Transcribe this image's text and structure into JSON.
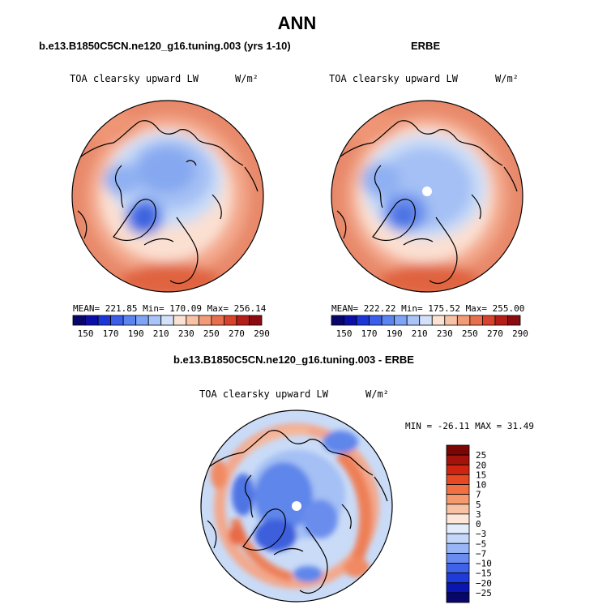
{
  "page": {
    "title": "ANN",
    "colors": {
      "land_outline": "#000000",
      "abs_scale": [
        "#08066b",
        "#0b0fa8",
        "#1c35d6",
        "#3c5ee8",
        "#5b84f0",
        "#7fa4f5",
        "#a9c4f8",
        "#d3e1fa",
        "#fbe3d3",
        "#f8c2a6",
        "#f39b78",
        "#e86f4d",
        "#d7432c",
        "#b51d19",
        "#8a0c10"
      ],
      "diff_scale": [
        "#08066b",
        "#0b15b0",
        "#1f3bd9",
        "#3e62e8",
        "#6a8cf0",
        "#9ab5f5",
        "#c4d6f9",
        "#e3ecfb",
        "#fde7d9",
        "#f8c3a4",
        "#f59a6e",
        "#f07043",
        "#e74a22",
        "#cf2510",
        "#a3120b",
        "#7a0606"
      ]
    }
  },
  "chart_data": [
    {
      "type": "heatmap",
      "projection": "polar-stereographic-north",
      "title": "b.e13.B1850C5CN.ne120_g16.tuning.003 (yrs 1-10)",
      "field_label": "TOA clearsky upward LW",
      "units": "W/m²",
      "stats_text": "MEAN= 221.85   Min= 170.09   Max= 256.14",
      "stats": {
        "mean": 221.85,
        "min": 170.09,
        "max": 256.14
      },
      "colorbar_levels": [
        150,
        160,
        170,
        180,
        190,
        200,
        210,
        220,
        230,
        240,
        250,
        260,
        270,
        280,
        290
      ],
      "colorbar_labels": [
        "150",
        "170",
        "190",
        "210",
        "230",
        "250",
        "270",
        "290"
      ]
    },
    {
      "type": "heatmap",
      "projection": "polar-stereographic-north",
      "title": "ERBE",
      "field_label": "TOA clearsky upward LW",
      "units": "W/m²",
      "stats_text": "MEAN= 222.22   Min= 175.52   Max= 255.00",
      "stats": {
        "mean": 222.22,
        "min": 175.52,
        "max": 255.0
      },
      "colorbar_levels": [
        150,
        160,
        170,
        180,
        190,
        200,
        210,
        220,
        230,
        240,
        250,
        260,
        270,
        280,
        290
      ],
      "colorbar_labels": [
        "150",
        "170",
        "190",
        "210",
        "230",
        "250",
        "270",
        "290"
      ]
    },
    {
      "type": "heatmap",
      "projection": "polar-stereographic-north",
      "title": "b.e13.B1850C5CN.ne120_g16.tuning.003 - ERBE",
      "field_label": "TOA clearsky upward LW",
      "units": "W/m²",
      "stats_text": "MIN = -26.11  MAX =  31.49",
      "stats": {
        "min": -26.11,
        "max": 31.49
      },
      "colorbar_levels": [
        -25,
        -20,
        -15,
        -10,
        -7,
        -5,
        -3,
        0,
        3,
        5,
        7,
        10,
        15,
        20,
        25
      ],
      "colorbar_labels": [
        "25",
        "20",
        "15",
        "10",
        "7",
        "5",
        "3",
        "0",
        "−3",
        "−5",
        "−7",
        "−10",
        "−15",
        "−20",
        "−25"
      ]
    }
  ]
}
